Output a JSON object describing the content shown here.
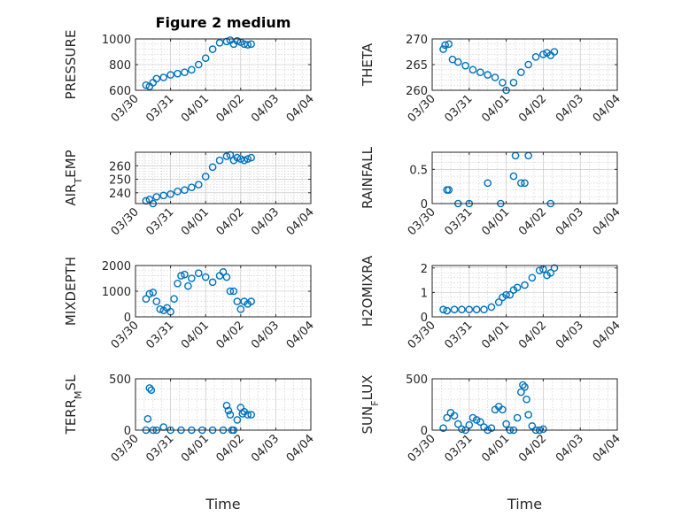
{
  "colors": {
    "marker": "#0072BD",
    "axis": "#262626",
    "grid": "#bdbdbd"
  },
  "chart_data": [
    {
      "type": "scatter",
      "title": "Figure 2 medium",
      "ylabel": "PRESSURE",
      "xlabel": "",
      "xlim": [
        "03/30",
        "04/04"
      ],
      "xticks": [
        "03/30",
        "03/31",
        "04/01",
        "04/02",
        "04/03",
        "04/04"
      ],
      "ylim": [
        600,
        1000
      ],
      "yticks": [
        600,
        800,
        1000
      ],
      "x_days": [
        0.3,
        0.4,
        0.5,
        0.6,
        0.8,
        1.0,
        1.2,
        1.4,
        1.6,
        1.8,
        2.0,
        2.2,
        2.4,
        2.6,
        2.7,
        2.8,
        2.9,
        3.0,
        3.1,
        3.2,
        3.3
      ],
      "y": [
        640,
        630,
        660,
        690,
        700,
        720,
        730,
        740,
        760,
        800,
        850,
        920,
        970,
        980,
        990,
        960,
        985,
        975,
        960,
        955,
        960
      ]
    },
    {
      "type": "scatter",
      "title": "",
      "ylabel": "THETA",
      "xlabel": "",
      "xlim": [
        "03/30",
        "04/04"
      ],
      "xticks": [
        "03/30",
        "03/31",
        "04/01",
        "04/02",
        "04/03",
        "04/04"
      ],
      "ylim": [
        260,
        270
      ],
      "yticks": [
        260,
        265,
        270
      ],
      "x_days": [
        0.3,
        0.35,
        0.45,
        0.55,
        0.7,
        0.9,
        1.1,
        1.3,
        1.5,
        1.7,
        1.9,
        2.0,
        2.2,
        2.4,
        2.6,
        2.8,
        3.0,
        3.1,
        3.2,
        3.3
      ],
      "y": [
        268,
        268.8,
        269,
        266,
        265.5,
        264.8,
        264,
        263.5,
        263,
        262.5,
        261.5,
        260,
        261.5,
        263.5,
        265,
        266.5,
        267,
        267.3,
        266.8,
        267.5
      ]
    },
    {
      "type": "scatter",
      "title": "",
      "ylabel": "AIR_TEMP",
      "xlabel": "",
      "xlim": [
        "03/30",
        "04/04"
      ],
      "xticks": [
        "03/30",
        "03/31",
        "04/01",
        "04/02",
        "04/03",
        "04/04"
      ],
      "ylim": [
        232,
        270
      ],
      "yticks": [
        240,
        250,
        260
      ],
      "x_days": [
        0.3,
        0.4,
        0.5,
        0.6,
        0.8,
        1.0,
        1.2,
        1.4,
        1.6,
        1.8,
        2.0,
        2.2,
        2.4,
        2.6,
        2.7,
        2.8,
        2.9,
        3.0,
        3.1,
        3.2,
        3.3
      ],
      "y": [
        234,
        235,
        232,
        237,
        238,
        239,
        241,
        242,
        244,
        246,
        252,
        259,
        264,
        267,
        268,
        264,
        266,
        265,
        264,
        265,
        266
      ]
    },
    {
      "type": "scatter",
      "title": "",
      "ylabel": "RAINFALL",
      "xlabel": "",
      "xlim": [
        "03/30",
        "04/04"
      ],
      "xticks": [
        "03/30",
        "03/31",
        "04/01",
        "04/02",
        "04/03",
        "04/04"
      ],
      "ylim": [
        0,
        0.75
      ],
      "yticks": [
        0,
        0.5
      ],
      "x_days": [
        0.4,
        0.45,
        0.7,
        1.0,
        1.5,
        1.85,
        2.2,
        2.25,
        2.4,
        2.5,
        2.6,
        3.2
      ],
      "y": [
        0.2,
        0.2,
        0,
        0,
        0.3,
        0,
        0.4,
        0.7,
        0.3,
        0.3,
        0.7,
        0
      ]
    },
    {
      "type": "scatter",
      "title": "",
      "ylabel": "MIXDEPTH",
      "xlabel": "",
      "xlim": [
        "03/30",
        "04/04"
      ],
      "xticks": [
        "03/30",
        "03/31",
        "04/01",
        "04/02",
        "04/03",
        "04/04"
      ],
      "ylim": [
        0,
        2000
      ],
      "yticks": [
        0,
        1000,
        2000
      ],
      "x_days": [
        0.3,
        0.4,
        0.5,
        0.6,
        0.7,
        0.8,
        0.9,
        1.0,
        1.1,
        1.2,
        1.3,
        1.4,
        1.5,
        1.6,
        1.8,
        2.0,
        2.2,
        2.4,
        2.5,
        2.6,
        2.7,
        2.8,
        2.9,
        3.0,
        3.1,
        3.2,
        3.3
      ],
      "y": [
        700,
        900,
        950,
        600,
        300,
        250,
        350,
        200,
        700,
        1300,
        1600,
        1650,
        1200,
        1500,
        1700,
        1550,
        1350,
        1600,
        1750,
        1550,
        1000,
        1000,
        600,
        300,
        600,
        500,
        600
      ]
    },
    {
      "type": "scatter",
      "title": "",
      "ylabel": "H2OMIXRA",
      "xlabel": "",
      "xlim": [
        "03/30",
        "04/04"
      ],
      "xticks": [
        "03/30",
        "03/31",
        "04/01",
        "04/02",
        "04/03",
        "04/04"
      ],
      "ylim": [
        0,
        2.1
      ],
      "yticks": [
        0,
        1,
        2
      ],
      "x_days": [
        0.3,
        0.4,
        0.6,
        0.8,
        1.0,
        1.2,
        1.4,
        1.6,
        1.8,
        1.9,
        2.0,
        2.1,
        2.2,
        2.3,
        2.5,
        2.7,
        2.9,
        3.0,
        3.1,
        3.2,
        3.3
      ],
      "y": [
        0.3,
        0.25,
        0.3,
        0.3,
        0.3,
        0.3,
        0.3,
        0.4,
        0.6,
        0.8,
        0.9,
        0.9,
        1.1,
        1.2,
        1.3,
        1.6,
        1.9,
        1.95,
        1.7,
        1.8,
        2.0
      ]
    },
    {
      "type": "scatter",
      "title": "",
      "ylabel": "TERR_MSL",
      "xlabel": "Time",
      "xlim": [
        "03/30",
        "04/04"
      ],
      "xticks": [
        "03/30",
        "03/31",
        "04/01",
        "04/02",
        "04/03",
        "04/04"
      ],
      "ylim": [
        0,
        500
      ],
      "yticks": [
        0,
        500
      ],
      "x_days": [
        0.3,
        0.35,
        0.4,
        0.45,
        0.5,
        0.6,
        0.8,
        1.0,
        1.3,
        1.6,
        1.9,
        2.2,
        2.5,
        2.6,
        2.65,
        2.7,
        2.75,
        2.8,
        2.9,
        3.0,
        3.05,
        3.1,
        3.2,
        3.3
      ],
      "y": [
        0,
        110,
        410,
        390,
        0,
        0,
        30,
        0,
        0,
        0,
        0,
        0,
        0,
        240,
        190,
        150,
        0,
        0,
        100,
        220,
        160,
        180,
        150,
        150
      ]
    },
    {
      "type": "scatter",
      "title": "",
      "ylabel": "SUN_FLUX",
      "xlabel": "Time",
      "xlim": [
        "03/30",
        "04/04"
      ],
      "xticks": [
        "03/30",
        "03/31",
        "04/01",
        "04/02",
        "04/03",
        "04/04"
      ],
      "ylim": [
        0,
        500
      ],
      "yticks": [
        0,
        500
      ],
      "x_days": [
        0.3,
        0.4,
        0.5,
        0.6,
        0.7,
        0.8,
        0.9,
        1.0,
        1.1,
        1.2,
        1.3,
        1.4,
        1.5,
        1.6,
        1.7,
        1.8,
        1.9,
        2.0,
        2.1,
        2.2,
        2.3,
        2.4,
        2.45,
        2.5,
        2.55,
        2.6,
        2.7,
        2.8,
        2.9,
        3.0
      ],
      "y": [
        20,
        120,
        170,
        140,
        60,
        10,
        0,
        50,
        120,
        100,
        80,
        30,
        0,
        20,
        200,
        230,
        200,
        60,
        0,
        0,
        120,
        370,
        440,
        420,
        300,
        150,
        40,
        0,
        0,
        10
      ]
    }
  ]
}
